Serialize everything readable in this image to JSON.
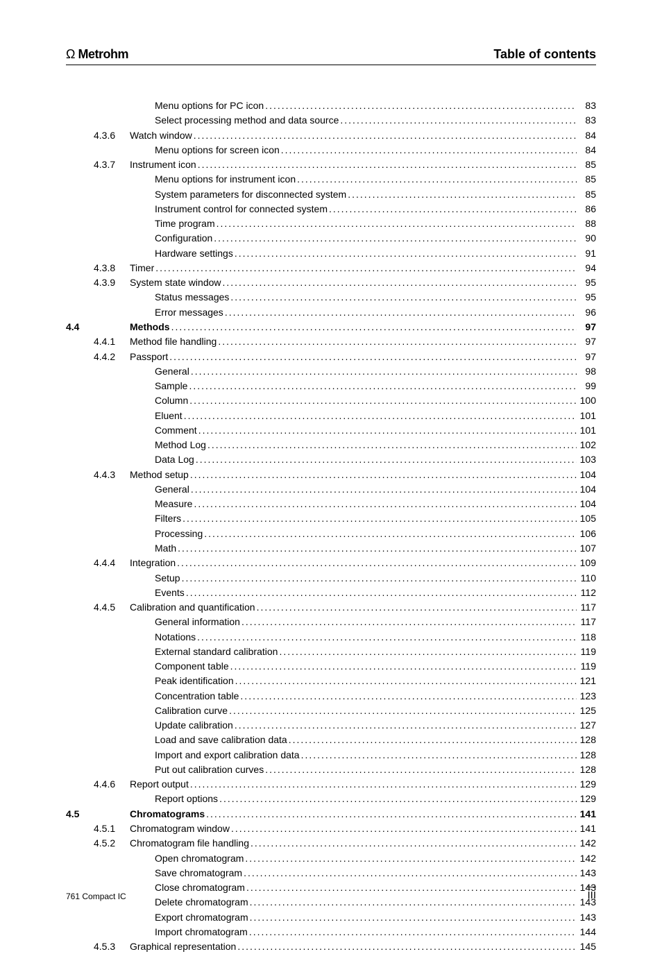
{
  "header": {
    "brand": "Metrohm",
    "title": "Table of contents"
  },
  "footer": {
    "left": "761 Compact IC",
    "right": "III"
  },
  "toc": [
    {
      "level": 3,
      "label": "Menu options for PC icon",
      "page": "83"
    },
    {
      "level": 3,
      "label": "Select processing method and data source",
      "page": "83"
    },
    {
      "level": 2,
      "num": "4.3.6",
      "label": "Watch window",
      "page": "84"
    },
    {
      "level": 3,
      "label": "Menu options for screen icon",
      "page": "84"
    },
    {
      "level": 2,
      "num": "4.3.7",
      "label": "Instrument icon",
      "page": "85"
    },
    {
      "level": 3,
      "label": "Menu options for instrument icon",
      "page": "85"
    },
    {
      "level": 3,
      "label": "System parameters for disconnected system",
      "page": "85"
    },
    {
      "level": 3,
      "label": "Instrument control for connected system",
      "page": "86"
    },
    {
      "level": 3,
      "label": "Time program",
      "page": "88"
    },
    {
      "level": 3,
      "label": "Configuration",
      "page": "90"
    },
    {
      "level": 3,
      "label": "Hardware settings",
      "page": "91"
    },
    {
      "level": 2,
      "num": "4.3.8",
      "label": "Timer",
      "page": "94"
    },
    {
      "level": 2,
      "num": "4.3.9",
      "label": "System state window",
      "page": "95"
    },
    {
      "level": 3,
      "label": "Status messages",
      "page": "95"
    },
    {
      "level": 3,
      "label": "Error messages",
      "page": "96"
    },
    {
      "level": 1,
      "sec": "4.4",
      "label": "Methods",
      "page": "97",
      "bold": true
    },
    {
      "level": 2,
      "num": "4.4.1",
      "label": "Method file handling",
      "page": "97"
    },
    {
      "level": 2,
      "num": "4.4.2",
      "label": "Passport",
      "page": "97"
    },
    {
      "level": 3,
      "label": "General",
      "page": "98"
    },
    {
      "level": 3,
      "label": "Sample",
      "page": "99"
    },
    {
      "level": 3,
      "label": "Column",
      "page": "100"
    },
    {
      "level": 3,
      "label": "Eluent",
      "page": "101"
    },
    {
      "level": 3,
      "label": "Comment",
      "page": "101"
    },
    {
      "level": 3,
      "label": "Method Log",
      "page": "102"
    },
    {
      "level": 3,
      "label": "Data Log",
      "page": "103"
    },
    {
      "level": 2,
      "num": "4.4.3",
      "label": "Method setup",
      "page": "104"
    },
    {
      "level": 3,
      "label": "General",
      "page": "104"
    },
    {
      "level": 3,
      "label": "Measure",
      "page": "104"
    },
    {
      "level": 3,
      "label": "Filters",
      "page": "105"
    },
    {
      "level": 3,
      "label": "Processing",
      "page": "106"
    },
    {
      "level": 3,
      "label": "Math",
      "page": "107"
    },
    {
      "level": 2,
      "num": "4.4.4",
      "label": "Integration",
      "page": "109"
    },
    {
      "level": 3,
      "label": "Setup",
      "page": "110"
    },
    {
      "level": 3,
      "label": "Events",
      "page": "112"
    },
    {
      "level": 2,
      "num": "4.4.5",
      "label": "Calibration and quantification",
      "page": "117"
    },
    {
      "level": 3,
      "label": "General information",
      "page": "117"
    },
    {
      "level": 3,
      "label": "Notations",
      "page": "118"
    },
    {
      "level": 3,
      "label": "External standard calibration",
      "page": "119"
    },
    {
      "level": 3,
      "label": "Component table",
      "page": "119"
    },
    {
      "level": 3,
      "label": "Peak identification",
      "page": "121"
    },
    {
      "level": 3,
      "label": "Concentration table",
      "page": "123"
    },
    {
      "level": 3,
      "label": "Calibration curve",
      "page": "125"
    },
    {
      "level": 3,
      "label": "Update calibration",
      "page": "127"
    },
    {
      "level": 3,
      "label": "Load and save calibration data",
      "page": "128"
    },
    {
      "level": 3,
      "label": "Import and export calibration data",
      "page": "128"
    },
    {
      "level": 3,
      "label": "Put out calibration curves",
      "page": "128"
    },
    {
      "level": 2,
      "num": "4.4.6",
      "label": "Report output",
      "page": "129"
    },
    {
      "level": 3,
      "label": "Report options",
      "page": "129"
    },
    {
      "level": 1,
      "sec": "4.5",
      "label": "Chromatograms",
      "page": "141",
      "bold": true
    },
    {
      "level": 2,
      "num": "4.5.1",
      "label": "Chromatogram window",
      "page": "141"
    },
    {
      "level": 2,
      "num": "4.5.2",
      "label": "Chromatogram file handling",
      "page": "142"
    },
    {
      "level": 3,
      "label": "Open chromatogram",
      "page": "142"
    },
    {
      "level": 3,
      "label": "Save chromatogram",
      "page": "143"
    },
    {
      "level": 3,
      "label": "Close chromatogram",
      "page": "143"
    },
    {
      "level": 3,
      "label": "Delete chromatogram",
      "page": "143"
    },
    {
      "level": 3,
      "label": "Export chromatogram",
      "page": "143"
    },
    {
      "level": 3,
      "label": "Import chromatogram",
      "page": "144"
    },
    {
      "level": 2,
      "num": "4.5.3",
      "label": "Graphical representation",
      "page": "145"
    }
  ]
}
